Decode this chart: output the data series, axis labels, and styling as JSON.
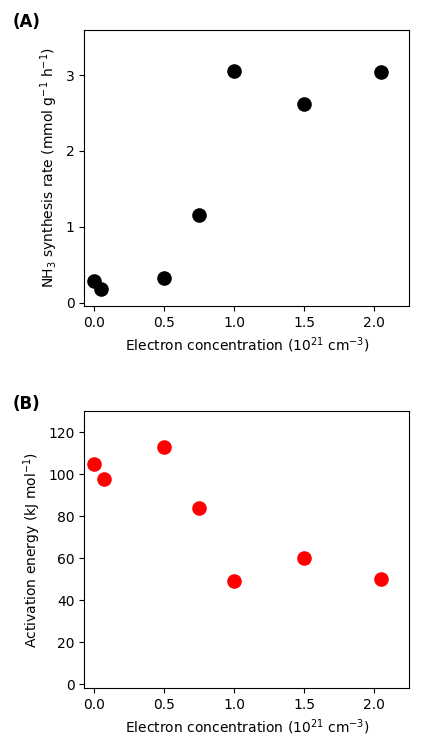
{
  "panel_A": {
    "label": "(A)",
    "x": [
      0.0,
      0.05,
      0.5,
      0.75,
      1.0,
      1.5,
      2.05
    ],
    "y": [
      0.28,
      0.18,
      0.32,
      1.15,
      3.05,
      2.62,
      3.04
    ],
    "color": "#000000",
    "marker": "o",
    "markersize": 90,
    "xlabel": "Electron concentration (10$^{21}$ cm$^{-3}$)",
    "ylabel": "NH$_{3}$ synthesis rate (mmol g$^{-1}$ h$^{-1}$)",
    "xlim": [
      -0.07,
      2.25
    ],
    "ylim": [
      -0.05,
      3.6
    ],
    "yticks": [
      0.0,
      1.0,
      2.0,
      3.0
    ],
    "xticks": [
      0.0,
      0.5,
      1.0,
      1.5,
      2.0
    ]
  },
  "panel_B": {
    "label": "(B)",
    "x": [
      0.0,
      0.07,
      0.5,
      0.75,
      1.0,
      1.5,
      2.05
    ],
    "y": [
      105,
      98,
      113,
      84,
      49,
      60,
      50
    ],
    "color": "#ff0000",
    "marker": "o",
    "markersize": 90,
    "xlabel": "Electron concentration (10$^{21}$ cm$^{-3}$)",
    "ylabel": "Activation energy (kJ mol$^{-1}$)",
    "xlim": [
      -0.07,
      2.25
    ],
    "ylim": [
      -2,
      130
    ],
    "yticks": [
      0,
      20,
      40,
      60,
      80,
      100,
      120
    ],
    "xticks": [
      0.0,
      0.5,
      1.0,
      1.5,
      2.0
    ]
  },
  "figure_bg": "#ffffff",
  "label_fontsize": 12,
  "tick_fontsize": 10,
  "axis_label_fontsize": 10
}
